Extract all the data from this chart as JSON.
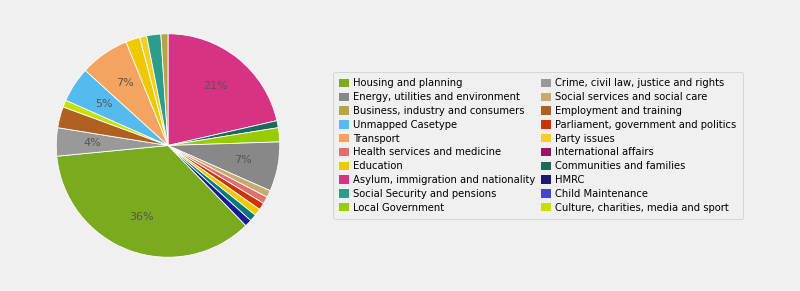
{
  "slices": [
    {
      "label": "Asylum, immigration and nationality",
      "pct": 21,
      "color": "#d63384"
    },
    {
      "label": "Communities and families",
      "pct": 1,
      "color": "#1a6b5a"
    },
    {
      "label": "Local Government",
      "pct": 2,
      "color": "#99cc00"
    },
    {
      "label": "Energy, utilities and environment",
      "pct": 7,
      "color": "#888888"
    },
    {
      "label": "Social services and social care",
      "pct": 1,
      "color": "#c8a96e"
    },
    {
      "label": "Health services and medicine",
      "pct": 1,
      "color": "#e07070"
    },
    {
      "label": "Parliament, government and politics",
      "pct": 1,
      "color": "#cc3300"
    },
    {
      "label": "International affairs",
      "pct": 1,
      "color": "#f0c800"
    },
    {
      "label": "HMRC",
      "pct": 1,
      "color": "#007a7a"
    },
    {
      "label": "Child Maintenance",
      "pct": 1,
      "color": "#1a1a99"
    },
    {
      "label": "Housing and planning",
      "pct": 35,
      "color": "#7aaa1e"
    },
    {
      "label": "Crime, civil law, justice and rights",
      "pct": 4,
      "color": "#999999"
    },
    {
      "label": "Employment and training",
      "pct": 3,
      "color": "#b06020"
    },
    {
      "label": "Culture, charities, media and sport",
      "pct": 1,
      "color": "#c8e000"
    },
    {
      "label": "Unmapped Casetype",
      "pct": 5,
      "color": "#55bbee"
    },
    {
      "label": "Transport",
      "pct": 7,
      "color": "#f4a460"
    },
    {
      "label": "Education",
      "pct": 2,
      "color": "#f0c800"
    },
    {
      "label": "Party issues",
      "pct": 1,
      "color": "#f5d020"
    },
    {
      "label": "Social Security and pensions",
      "pct": 2,
      "color": "#2e9c8a"
    },
    {
      "label": "Business, industry and consumers",
      "pct": 1,
      "color": "#b5a642"
    }
  ],
  "legend_order": [
    {
      "label": "Housing and planning",
      "color": "#7aaa1e"
    },
    {
      "label": "Energy, utilities and environment",
      "color": "#888888"
    },
    {
      "label": "Business, industry and consumers",
      "color": "#b5a642"
    },
    {
      "label": "Unmapped Casetype",
      "color": "#55bbee"
    },
    {
      "label": "Transport",
      "color": "#f4a460"
    },
    {
      "label": "Health services and medicine",
      "color": "#e07070"
    },
    {
      "label": "Education",
      "color": "#f0c800"
    },
    {
      "label": "Asylum, immigration and nationality",
      "color": "#d63384"
    },
    {
      "label": "Social Security and pensions",
      "color": "#2e9c8a"
    },
    {
      "label": "Local Government",
      "color": "#99cc00"
    },
    {
      "label": "Crime, civil law, justice and rights",
      "color": "#999999"
    },
    {
      "label": "Social services and social care",
      "color": "#c8a96e"
    },
    {
      "label": "Employment and training",
      "color": "#b06020"
    },
    {
      "label": "Parliament, government and politics",
      "color": "#cc3300"
    },
    {
      "label": "Party issues",
      "color": "#f5d020"
    },
    {
      "label": "International affairs",
      "color": "#9b1560"
    },
    {
      "label": "Communities and families",
      "color": "#1a6b5a"
    },
    {
      "label": "HMRC",
      "color": "#1a1a6e"
    },
    {
      "label": "Child Maintenance",
      "color": "#4444cc"
    },
    {
      "label": "Culture, charities, media and sport",
      "color": "#c8e000"
    }
  ],
  "bg_color": "#f0f0f0",
  "legend_fontsize": 7.2,
  "figsize": [
    8.0,
    2.91
  ]
}
